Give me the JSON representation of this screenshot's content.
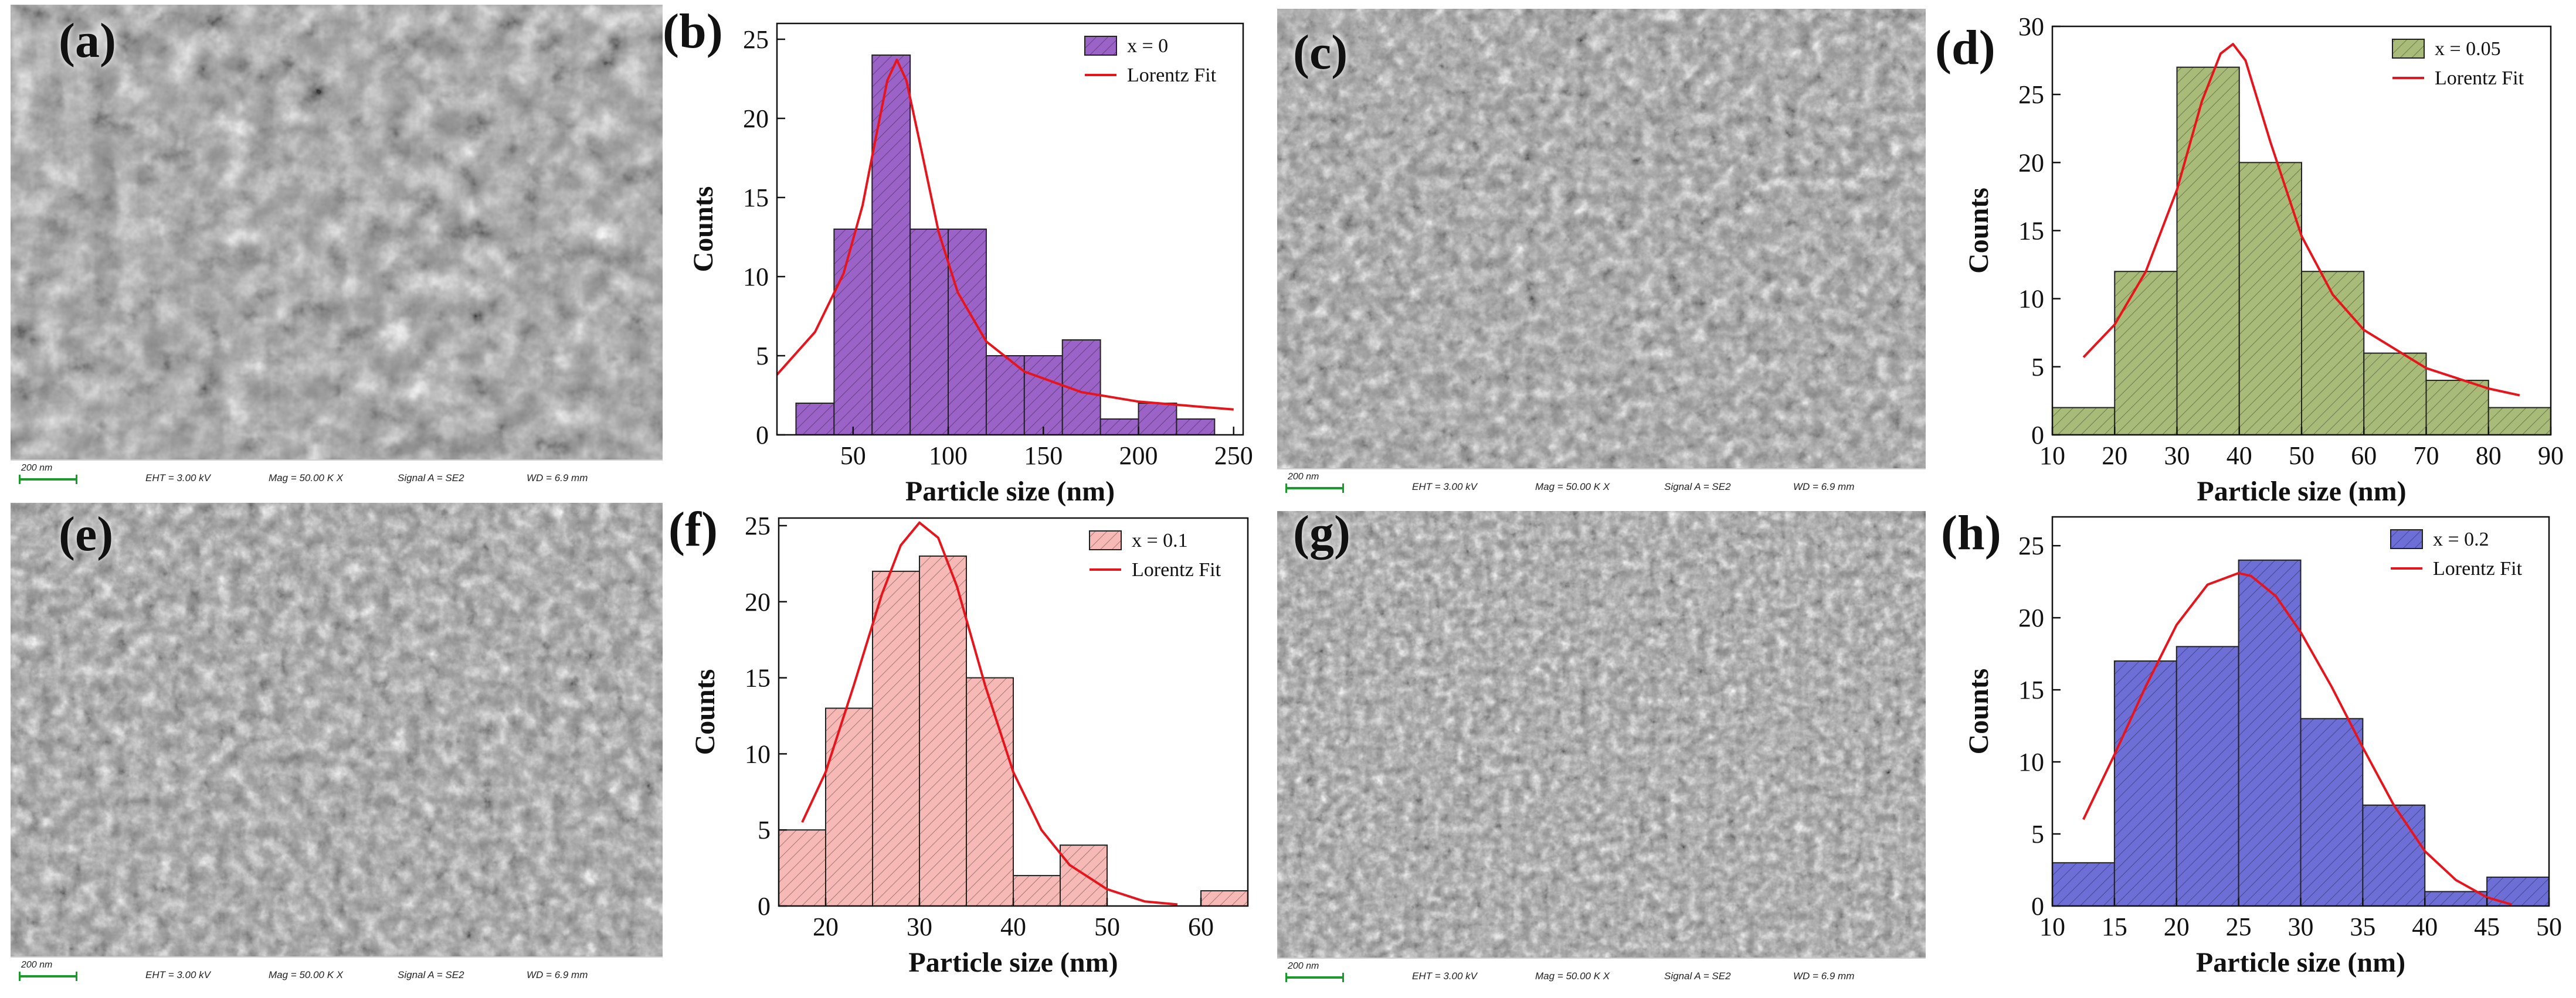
{
  "panels": {
    "a": "(a)",
    "b": "(b)",
    "c": "(c)",
    "d": "(d)",
    "e": "(e)",
    "f": "(f)",
    "g": "(g)",
    "h": "(h)"
  },
  "sem_bar": {
    "scale": "200 nm",
    "eht": "EHT =  3.00 kV",
    "mag": "Mag =  50.00 K X",
    "signal": "Signal A = SE2",
    "wd": "WD =  6.9 mm"
  },
  "colors": {
    "purple": "#9b63c8",
    "green": "#a9bb78",
    "pink": "#f7b9b6",
    "blue": "#6d6fd6",
    "fit": "#e8141b"
  },
  "chart_data": [
    {
      "id": "b",
      "type": "bar",
      "color_key": "purple",
      "xlabel": "Particle size (nm)",
      "ylabel": "Counts",
      "xlim": [
        10,
        255
      ],
      "ylim": [
        0,
        26
      ],
      "xticks": [
        50,
        100,
        150,
        200,
        250
      ],
      "yticks": [
        0,
        5,
        10,
        15,
        20,
        25
      ],
      "bin_width": 20,
      "bins": [
        30,
        50,
        70,
        90,
        110,
        130,
        150,
        170,
        190,
        210,
        230
      ],
      "counts": [
        2,
        13,
        24,
        13,
        13,
        5,
        5,
        6,
        1,
        2,
        1
      ],
      "legend": [
        "x = 0",
        "Lorentz Fit"
      ],
      "fit": {
        "x": [
          10,
          30,
          45,
          55,
          62,
          68,
          73,
          78,
          85,
          95,
          105,
          120,
          140,
          170,
          200,
          250
        ],
        "y": [
          3.8,
          6.5,
          10.2,
          14.5,
          18.8,
          22.4,
          23.7,
          22.4,
          18.5,
          12.8,
          9.0,
          5.9,
          4.0,
          2.7,
          2.1,
          1.6
        ]
      }
    },
    {
      "id": "d",
      "type": "bar",
      "color_key": "green",
      "xlabel": "Particle size (nm)",
      "ylabel": "Counts",
      "xlim": [
        10,
        90
      ],
      "ylim": [
        0,
        30
      ],
      "xticks": [
        10,
        20,
        30,
        40,
        50,
        60,
        70,
        80,
        90
      ],
      "yticks": [
        0,
        5,
        10,
        15,
        20,
        25,
        30
      ],
      "bin_width": 10,
      "bins": [
        15,
        25,
        35,
        45,
        55,
        65,
        75,
        85
      ],
      "counts": [
        2,
        12,
        27,
        20,
        12,
        6,
        4,
        2
      ],
      "legend": [
        "x = 0.05",
        "Lorentz Fit"
      ],
      "fit": {
        "x": [
          15,
          20,
          25,
          30,
          34,
          37,
          39,
          41,
          45,
          50,
          55,
          60,
          70,
          80,
          85
        ],
        "y": [
          5.7,
          8.1,
          12.0,
          18.0,
          24.5,
          28.0,
          28.7,
          27.5,
          21.5,
          14.6,
          10.3,
          7.7,
          4.9,
          3.4,
          2.9
        ]
      }
    },
    {
      "id": "f",
      "type": "bar",
      "color_key": "pink",
      "xlabel": "Particle size (nm)",
      "ylabel": "Counts",
      "xlim": [
        15,
        65
      ],
      "ylim": [
        0,
        25.5
      ],
      "xticks": [
        20,
        30,
        40,
        50,
        60
      ],
      "yticks": [
        0,
        5,
        10,
        15,
        20,
        25
      ],
      "bin_width": 5,
      "bins": [
        17.5,
        22.5,
        27.5,
        32.5,
        37.5,
        42.5,
        47.5,
        52.5,
        57.5,
        62.5
      ],
      "counts": [
        5,
        13,
        22,
        23,
        15,
        2,
        4,
        0,
        0,
        1
      ],
      "legend": [
        "x = 0.1",
        "Lorentz Fit"
      ],
      "fit": {
        "x": [
          17.5,
          20,
          23,
          26,
          28,
          30,
          32,
          34,
          37,
          40,
          43,
          46,
          50,
          54,
          57.5
        ],
        "y": [
          5.5,
          8.8,
          14.5,
          20.5,
          23.7,
          25.2,
          24.2,
          21.0,
          14.5,
          8.8,
          5.0,
          2.7,
          1.1,
          0.3,
          0.1
        ]
      }
    },
    {
      "id": "h",
      "type": "bar",
      "color_key": "blue",
      "xlabel": "Particle size (nm)",
      "ylabel": "Counts",
      "xlim": [
        10,
        50
      ],
      "ylim": [
        0,
        27
      ],
      "xticks": [
        10,
        15,
        20,
        25,
        30,
        35,
        40,
        45,
        50
      ],
      "yticks": [
        0,
        5,
        10,
        15,
        20,
        25
      ],
      "bin_width": 5,
      "bins": [
        12.5,
        17.5,
        22.5,
        27.5,
        32.5,
        37.5,
        42.5,
        47.5
      ],
      "counts": [
        3,
        17,
        18,
        24,
        13,
        7,
        1,
        2
      ],
      "legend": [
        "x = 0.2",
        "Lorentz Fit"
      ],
      "fit": {
        "x": [
          12.5,
          15,
          17.5,
          20,
          22.5,
          25,
          26,
          28,
          30,
          32.5,
          35,
          37.5,
          40,
          42.5,
          45,
          47
        ],
        "y": [
          6.0,
          10.5,
          15.2,
          19.5,
          22.3,
          23.1,
          22.9,
          21.5,
          19.0,
          15.2,
          11.0,
          7.0,
          3.8,
          1.8,
          0.6,
          0.1
        ]
      }
    }
  ]
}
